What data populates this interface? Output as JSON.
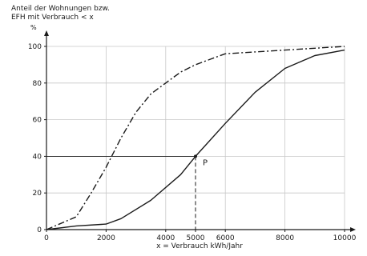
{
  "chart_data": {
    "type": "line",
    "ylabel_lines": [
      "Anteil der Wohnungen bzw.",
      "EFH mit Verbrauch  < x"
    ],
    "yunit": "%",
    "xlabel": "x = Verbrauch kWh/Jahr",
    "xlim": [
      0,
      10000
    ],
    "ylim": [
      0,
      100
    ],
    "xticks": [
      0,
      2000,
      4000,
      5000,
      6000,
      8000,
      10000
    ],
    "yticks": [
      0,
      20,
      40,
      60,
      80,
      100
    ],
    "grid": true,
    "series": [
      {
        "style": "dash-dot",
        "x": [
          0,
          1000,
          1500,
          2000,
          2500,
          3000,
          3500,
          4000,
          4500,
          5000,
          5500,
          6000,
          7000,
          8000,
          9000,
          10000
        ],
        "y": [
          0,
          7,
          20,
          34,
          50,
          64,
          74,
          80,
          86,
          90,
          93,
          96,
          97,
          98,
          99,
          100
        ]
      },
      {
        "style": "solid",
        "x": [
          0,
          1000,
          2000,
          2500,
          3500,
          4500,
          5000,
          6000,
          7000,
          8000,
          9000,
          10000
        ],
        "y": [
          0,
          2,
          3,
          6,
          16,
          30,
          40,
          58,
          75,
          88,
          95,
          98
        ]
      }
    ],
    "annotation": {
      "label": "P",
      "x": 5000,
      "y": 40
    }
  }
}
